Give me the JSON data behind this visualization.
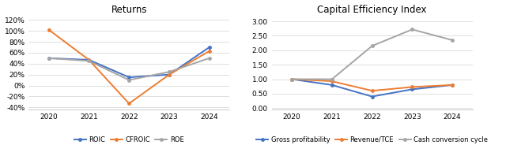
{
  "years": [
    2020,
    2021,
    2022,
    2023,
    2024
  ],
  "returns": {
    "title": "Returns",
    "ROIC": [
      0.5,
      0.47,
      0.15,
      0.2,
      0.7
    ],
    "CFROIC": [
      1.02,
      0.47,
      -0.33,
      0.2,
      0.63
    ],
    "ROE": [
      0.5,
      0.45,
      0.1,
      0.25,
      0.5
    ],
    "ylim": [
      -0.44,
      1.28
    ],
    "yticks": [
      -0.4,
      -0.2,
      0.0,
      0.2,
      0.4,
      0.6,
      0.8,
      1.0,
      1.2
    ],
    "colors": {
      "ROIC": "#4472c4",
      "CFROIC": "#ed7d31",
      "ROE": "#a5a5a5"
    }
  },
  "capital": {
    "title": "Capital Efficiency Index",
    "Gross profitability": [
      1.0,
      0.8,
      0.4,
      0.65,
      0.8
    ],
    "Revenue/TCE": [
      1.0,
      0.93,
      0.6,
      0.73,
      0.8
    ],
    "Cash conversion cycle": [
      1.0,
      1.0,
      2.15,
      2.72,
      2.35
    ],
    "ylim": [
      -0.05,
      3.2
    ],
    "yticks": [
      0.0,
      0.5,
      1.0,
      1.5,
      2.0,
      2.5,
      3.0
    ],
    "colors": {
      "Gross profitability": "#4472c4",
      "Revenue/TCE": "#ed7d31",
      "Cash conversion cycle": "#a5a5a5"
    }
  },
  "background": "#ffffff",
  "plot_bg": "#ffffff",
  "grid_color": "#d9d9d9",
  "title_fontsize": 8.5,
  "tick_fontsize": 6.5,
  "legend_fontsize": 6.0,
  "line_width": 1.4,
  "marker_size": 2.5
}
